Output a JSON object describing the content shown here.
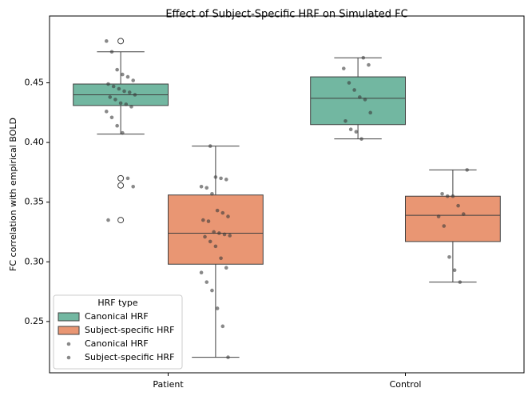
{
  "chart_data": {
    "type": "box",
    "title": "Effect of Subject-Specific HRF on Simulated FC",
    "y_label": "FC correlation with empirical BOLD",
    "categories": [
      "Patient",
      "Control"
    ],
    "ylim": [
      0.207,
      0.506
    ],
    "yticks": [
      0.25,
      {
        "value": 0.3,
        "label": "0.30"
      },
      0.35,
      {
        "value": 0.4,
        "label": "0.40"
      },
      0.45
    ],
    "legend_title": "HRF type",
    "legend_position": "lower left",
    "point_color": "#3a3a3a",
    "series": [
      {
        "name": "Canonical HRF",
        "color": "#72b7a1",
        "boxes": [
          {
            "min": 0.407,
            "q1": 0.431,
            "median": 0.44,
            "q3": 0.449,
            "max": 0.476,
            "outliers": [
              0.485,
              0.37,
              0.364,
              0.335
            ]
          },
          {
            "min": 0.403,
            "q1": 0.415,
            "median": 0.437,
            "q3": 0.455,
            "max": 0.471,
            "outliers": []
          }
        ],
        "points": [
          [
            0.485,
            0.476,
            0.461,
            0.457,
            0.455,
            0.452,
            0.449,
            0.447,
            0.445,
            0.443,
            0.442,
            0.44,
            0.438,
            0.436,
            0.433,
            0.432,
            0.43,
            0.426,
            0.421,
            0.414,
            0.408,
            0.37,
            0.363,
            0.335
          ],
          [
            0.471,
            0.465,
            0.462,
            0.45,
            0.444,
            0.438,
            0.436,
            0.425,
            0.418,
            0.411,
            0.409,
            0.403
          ]
        ]
      },
      {
        "name": "Subject-specific HRF",
        "color": "#e99673",
        "boxes": [
          {
            "min": 0.22,
            "q1": 0.298,
            "median": 0.324,
            "q3": 0.356,
            "max": 0.397,
            "outliers": []
          },
          {
            "min": 0.283,
            "q1": 0.317,
            "median": 0.339,
            "q3": 0.355,
            "max": 0.377,
            "outliers": []
          }
        ],
        "points": [
          [
            0.397,
            0.371,
            0.37,
            0.369,
            0.363,
            0.362,
            0.357,
            0.343,
            0.341,
            0.338,
            0.335,
            0.334,
            0.325,
            0.324,
            0.323,
            0.322,
            0.321,
            0.317,
            0.313,
            0.303,
            0.295,
            0.291,
            0.283,
            0.276,
            0.261,
            0.246,
            0.22
          ],
          [
            0.377,
            0.357,
            0.355,
            0.355,
            0.347,
            0.34,
            0.338,
            0.33,
            0.304,
            0.293,
            0.283
          ]
        ]
      }
    ]
  }
}
